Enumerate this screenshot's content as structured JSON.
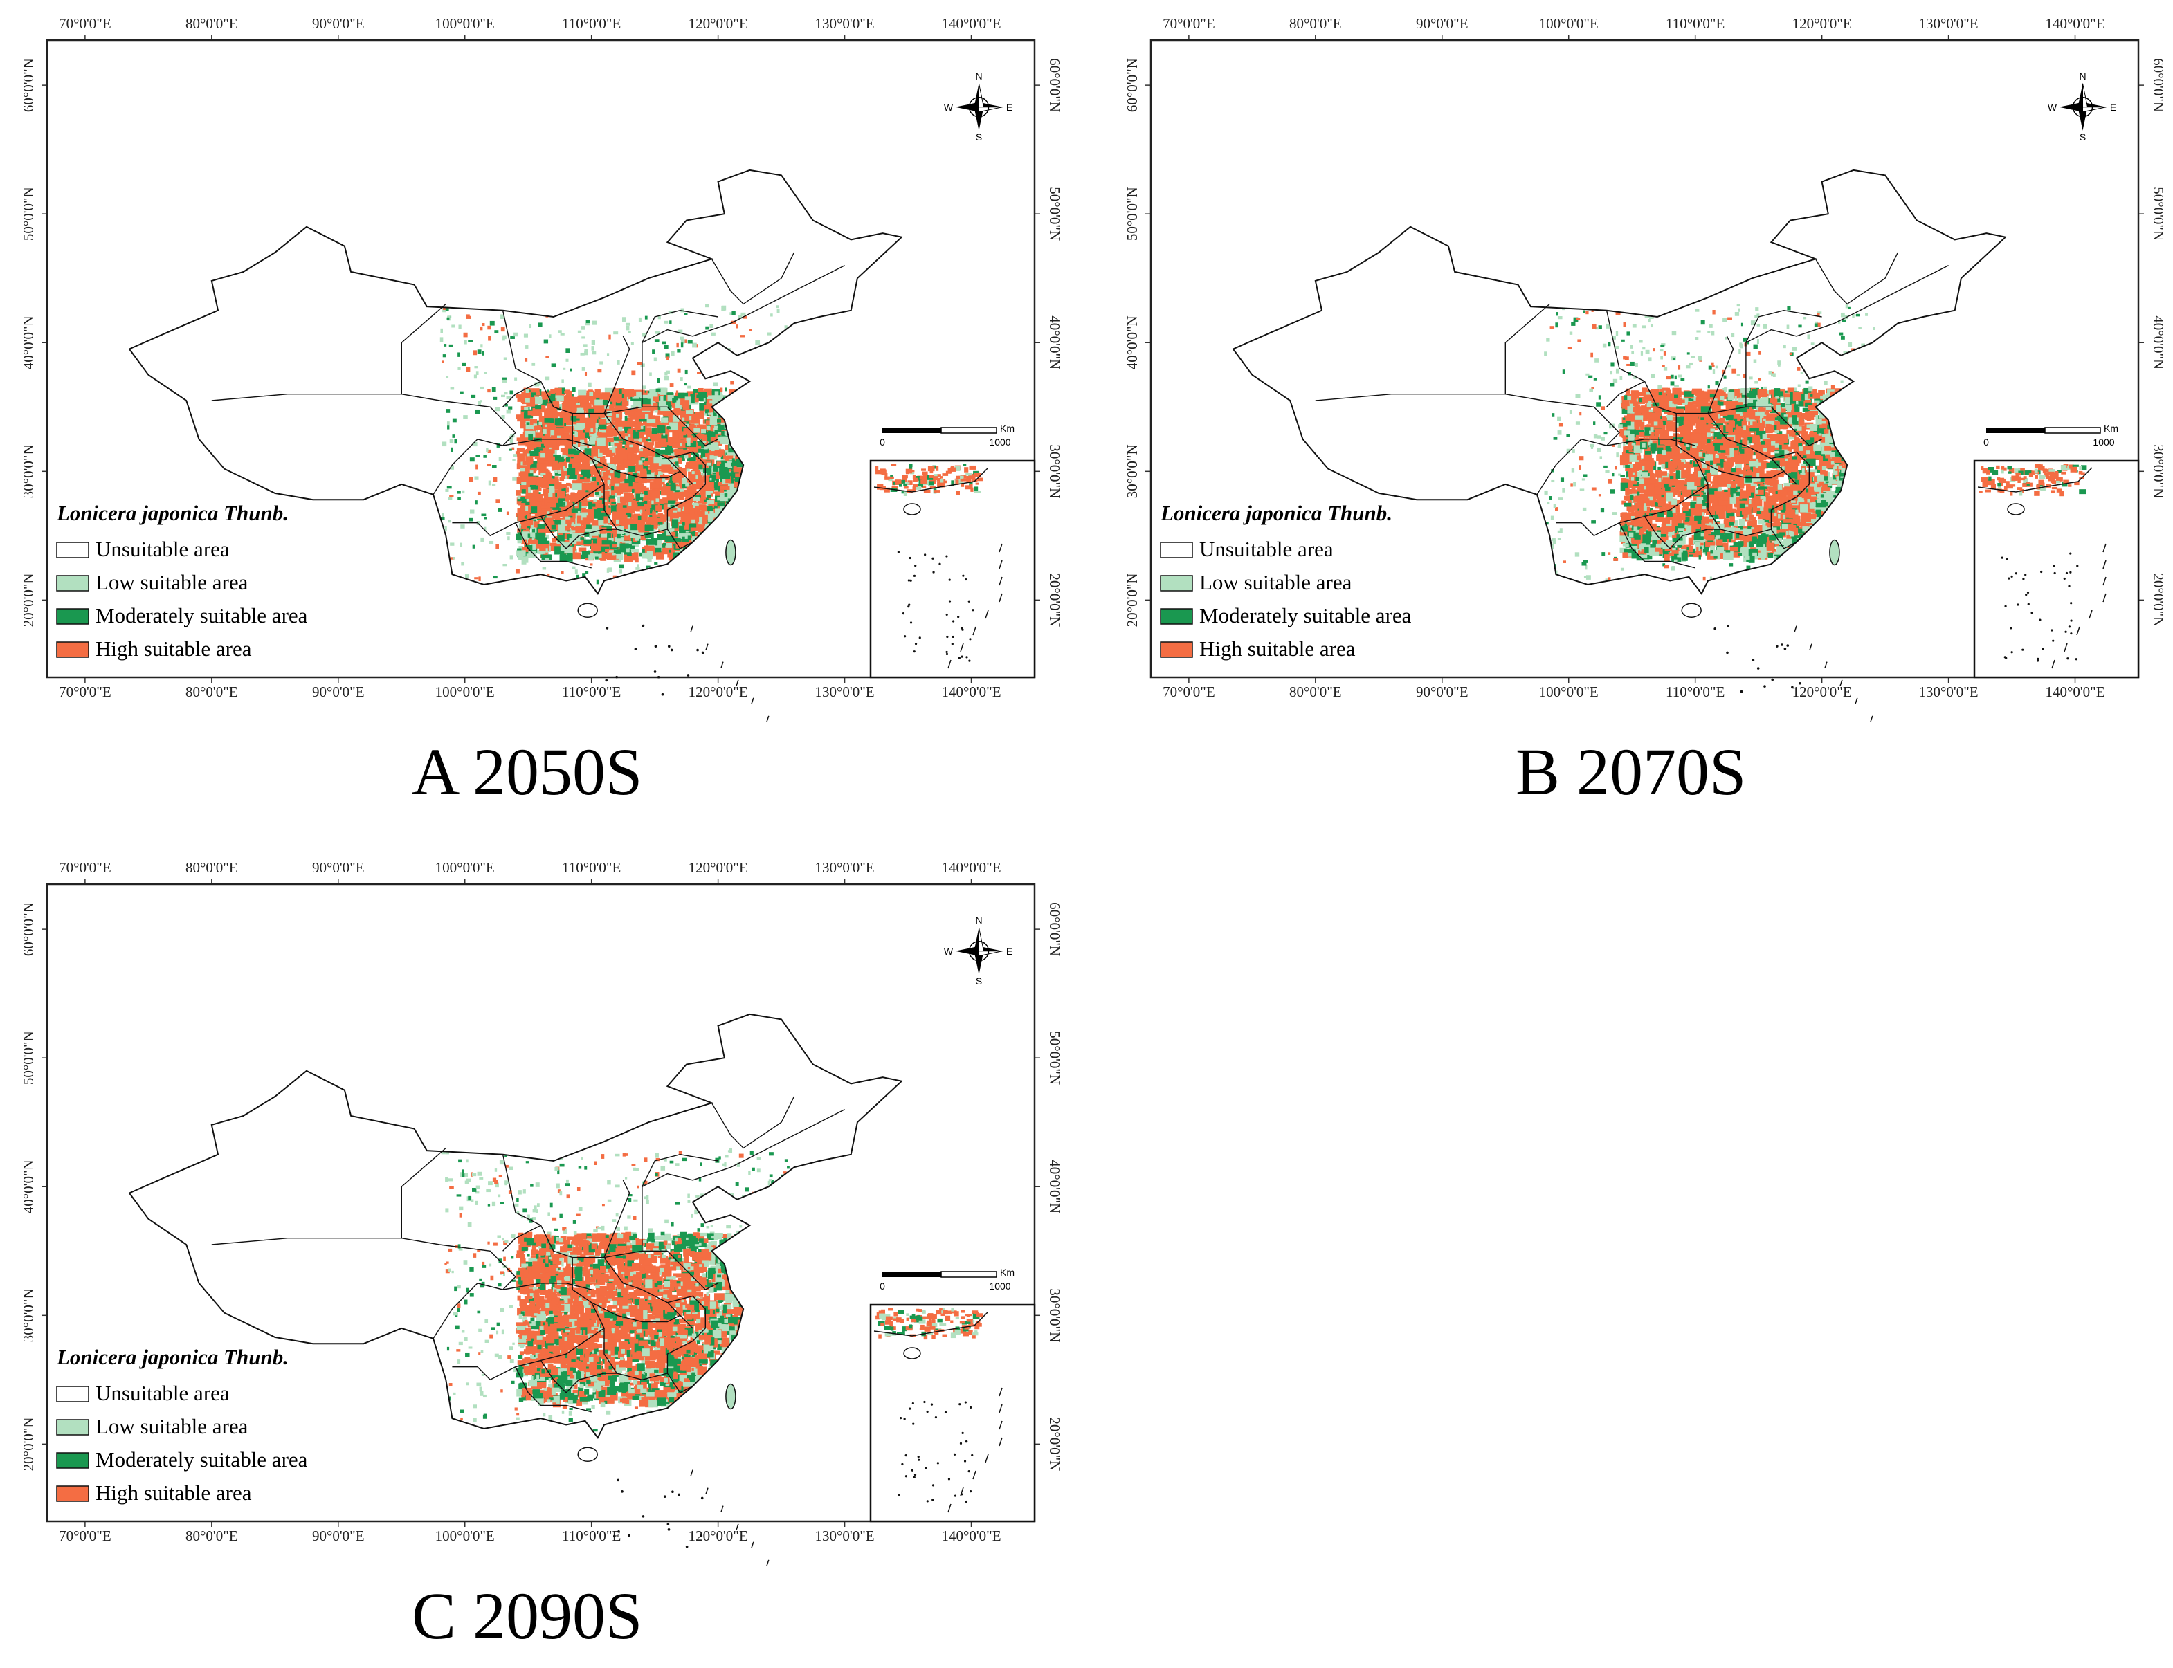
{
  "figure": {
    "panels": [
      {
        "id": "A",
        "caption": "A 2050S"
      },
      {
        "id": "B",
        "caption": "B 2070S"
      },
      {
        "id": "C",
        "caption": "C 2090S"
      }
    ],
    "longitude_ticks": [
      "70°0'0\"E",
      "80°0'0\"E",
      "90°0'0\"E",
      "100°0'0\"E",
      "110°0'0\"E",
      "120°0'0\"E",
      "130°0'0\"E",
      "140°0'0\"E"
    ],
    "latitude_ticks": [
      "20°0'0\"N",
      "30°0'0\"N",
      "40°0'0\"N",
      "50°0'0\"N",
      "60°0'0\"N"
    ],
    "legend": {
      "title": "Lonicera japonica Thunb.",
      "items": [
        {
          "label": "Unsuitable area",
          "color": "#ffffff"
        },
        {
          "label": "Low suitable area",
          "color": "#b2e0c0"
        },
        {
          "label": "Moderately suitable area",
          "color": "#1a9850"
        },
        {
          "label": "High suitable area",
          "color": "#f46d43"
        }
      ]
    },
    "scale_bar": {
      "unit": "Km",
      "start": "0",
      "end": "1000"
    },
    "compass": {
      "n": "N",
      "s": "S",
      "e": "E",
      "w": "W"
    }
  }
}
